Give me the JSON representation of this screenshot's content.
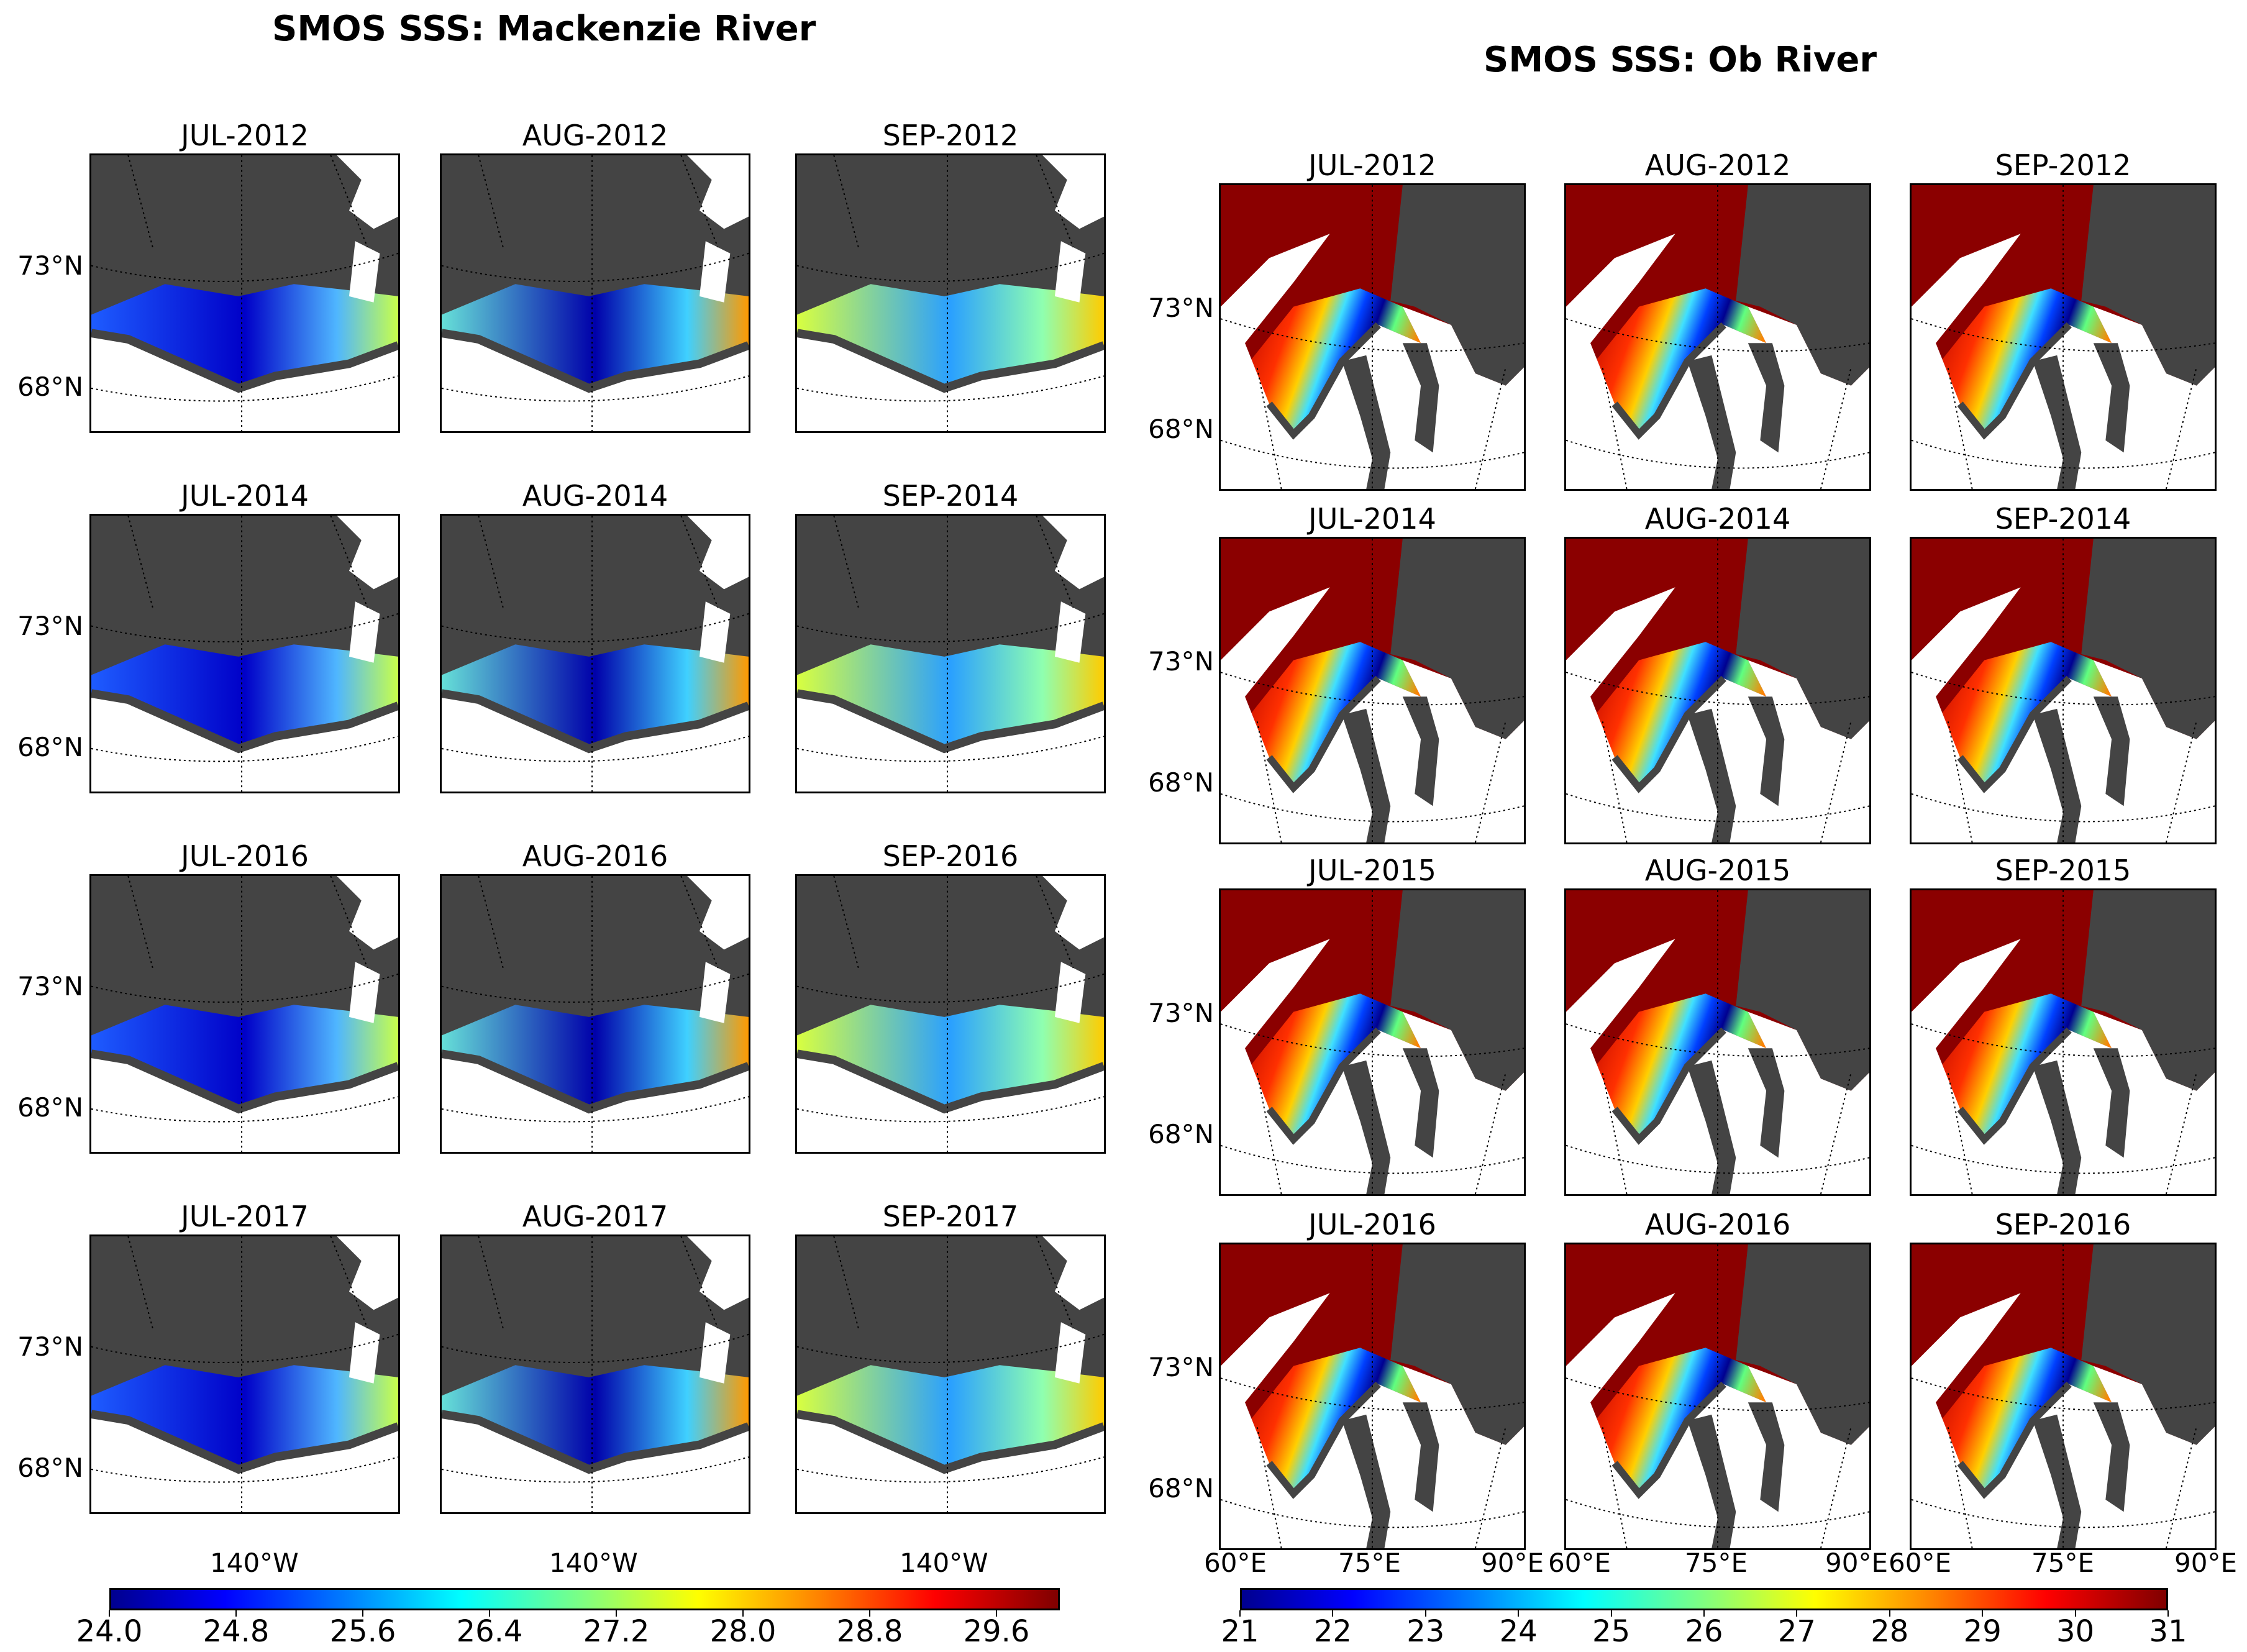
{
  "mackenzie": {
    "title": "SMOS SSS: Mackenzie River",
    "panels": [
      "JUL-2012",
      "AUG-2012",
      "SEP-2012",
      "JUL-2014",
      "AUG-2014",
      "SEP-2014",
      "JUL-2016",
      "AUG-2016",
      "SEP-2016",
      "JUL-2017",
      "AUG-2017",
      "SEP-2017"
    ],
    "lat_labels": [
      "73°N",
      "68°N"
    ],
    "lon_label": "140°W",
    "colorbar": {
      "ticks": [
        "24.0",
        "24.8",
        "25.6",
        "26.4",
        "27.2",
        "28.0",
        "28.8",
        "29.6"
      ],
      "range": [
        24.0,
        30.0
      ]
    }
  },
  "ob": {
    "title": "SMOS SSS: Ob River",
    "panels": [
      "JUL-2012",
      "AUG-2012",
      "SEP-2012",
      "JUL-2014",
      "AUG-2014",
      "SEP-2014",
      "JUL-2015",
      "AUG-2015",
      "SEP-2015",
      "JUL-2016",
      "AUG-2016",
      "SEP-2016"
    ],
    "lat_labels": [
      "73°N",
      "68°N"
    ],
    "lon_labels": [
      "60°E",
      "75°E",
      "90°E"
    ],
    "colorbar": {
      "ticks": [
        "21",
        "22",
        "23",
        "24",
        "25",
        "26",
        "27",
        "28",
        "29",
        "30",
        "31"
      ],
      "range": [
        21,
        31
      ]
    }
  },
  "colors": {
    "land": "#444444",
    "outside": "#ffffff",
    "jet_low": "#00008f",
    "jet_high": "#800000"
  }
}
